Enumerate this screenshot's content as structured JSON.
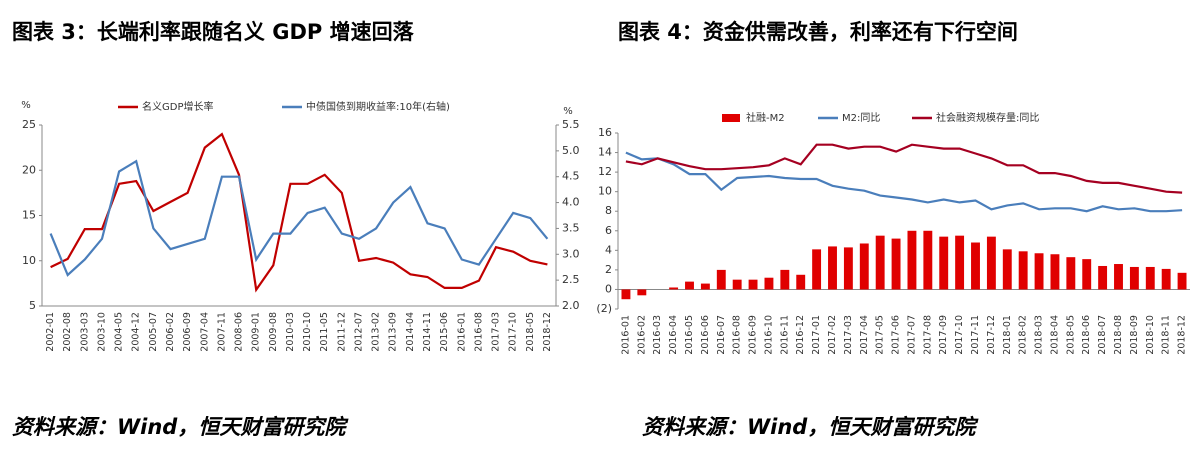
{
  "chart_data": [
    {
      "type": "line",
      "title": "图表 3：长端利率跟随名义 GDP 增速回落",
      "source": "资料来源：Wind，恒天财富研究院",
      "y_unit": "%",
      "y2_unit": "%",
      "categories": [
        "2002-01",
        "2002-08",
        "2003-03",
        "2003-10",
        "2004-05",
        "2004-12",
        "2005-07",
        "2006-02",
        "2006-09",
        "2007-04",
        "2007-11",
        "2008-06",
        "2009-01",
        "2009-08",
        "2010-03",
        "2010-10",
        "2011-05",
        "2011-12",
        "2012-07",
        "2013-02",
        "2013-09",
        "2014-04",
        "2014-11",
        "2015-06",
        "2016-01",
        "2016-08",
        "2017-03",
        "2017-10",
        "2018-05",
        "2018-12"
      ],
      "series": [
        {
          "name": "名义GDP增长率",
          "color": "#c00000",
          "values": [
            9.3,
            10.2,
            13.5,
            13.5,
            18.5,
            18.8,
            15.5,
            16.5,
            17.5,
            22.5,
            24,
            19.5,
            6.8,
            9.5,
            18.5,
            18.5,
            19.5,
            17.5,
            10,
            10.3,
            9.8,
            8.5,
            8.2,
            7,
            7,
            7.8,
            11.5,
            11,
            10,
            9.6
          ]
        },
        {
          "name": "中债国债到期收益率:10年(右轴)",
          "color": "#4a7ebb",
          "axis": "y2",
          "values": [
            3.4,
            2.6,
            2.9,
            3.3,
            4.6,
            4.8,
            3.5,
            3.1,
            3.2,
            3.3,
            4.5,
            4.5,
            2.9,
            3.4,
            3.4,
            3.8,
            3.9,
            3.4,
            3.3,
            3.5,
            4.0,
            4.3,
            3.6,
            3.5,
            2.9,
            2.8,
            3.3,
            3.8,
            3.7,
            3.3
          ]
        }
      ],
      "ylim": [
        5,
        25
      ],
      "yticks": [
        5,
        10,
        15,
        20,
        25
      ],
      "y2lim": [
        2,
        5.5
      ],
      "y2ticks": [
        {
          "value": 2,
          "label": "2.0"
        },
        {
          "value": 2.5,
          "label": "2.5"
        },
        {
          "value": 3,
          "label": "3.0"
        },
        {
          "value": 3.5,
          "label": "3.5"
        },
        {
          "value": 4,
          "label": "4.0"
        },
        {
          "value": 4.5,
          "label": "4.5"
        },
        {
          "value": 5,
          "label": "5.0"
        },
        {
          "value": 5.5,
          "label": "5.5"
        }
      ]
    },
    {
      "type": "bar",
      "title": "图表 4：资金供需改善，利率还有下行空间",
      "source": "资料来源：Wind，恒天财富研究院",
      "categories": [
        "2016-01",
        "2016-02",
        "2016-03",
        "2016-04",
        "2016-05",
        "2016-06",
        "2016-07",
        "2016-08",
        "2016-09",
        "2016-10",
        "2016-11",
        "2016-12",
        "2017-01",
        "2017-02",
        "2017-03",
        "2017-04",
        "2017-05",
        "2017-06",
        "2017-07",
        "2017-08",
        "2017-09",
        "2017-10",
        "2017-11",
        "2017-12",
        "2018-01",
        "2018-02",
        "2018-03",
        "2018-04",
        "2018-05",
        "2018-06",
        "2018-07",
        "2018-08",
        "2018-09",
        "2018-10",
        "2018-11",
        "2018-12"
      ],
      "series": [
        {
          "name": "社融-M2",
          "type": "bar",
          "color": "#e00000",
          "values": [
            -1.0,
            -0.6,
            0,
            0.2,
            0.8,
            0.6,
            2.0,
            1.0,
            1.0,
            1.2,
            2.0,
            1.5,
            4.1,
            4.4,
            4.3,
            4.7,
            5.5,
            5.2,
            6.0,
            6.0,
            5.4,
            5.5,
            4.8,
            5.4,
            4.1,
            3.9,
            3.7,
            3.6,
            3.3,
            3.1,
            2.4,
            2.6,
            2.3,
            2.3,
            2.1,
            1.7
          ]
        },
        {
          "name": "M2:同比",
          "type": "line",
          "color": "#4a7ebb",
          "values": [
            14.0,
            13.3,
            13.4,
            12.8,
            11.8,
            11.8,
            10.2,
            11.4,
            11.5,
            11.6,
            11.4,
            11.3,
            11.3,
            10.6,
            10.3,
            10.1,
            9.6,
            9.4,
            9.2,
            8.9,
            9.2,
            8.9,
            9.1,
            8.2,
            8.6,
            8.8,
            8.2,
            8.3,
            8.3,
            8.0,
            8.5,
            8.2,
            8.3,
            8.0,
            8.0,
            8.1
          ]
        },
        {
          "name": "社会融资规模存量:同比",
          "type": "line",
          "color": "#a50021",
          "values": [
            13.1,
            12.8,
            13.4,
            13.0,
            12.6,
            12.3,
            12.3,
            12.4,
            12.5,
            12.7,
            13.4,
            12.8,
            14.8,
            14.8,
            14.4,
            14.6,
            14.6,
            14.1,
            14.8,
            14.6,
            14.4,
            14.4,
            13.9,
            13.4,
            12.7,
            12.7,
            11.9,
            11.9,
            11.6,
            11.1,
            10.9,
            10.9,
            10.6,
            10.3,
            10.0,
            9.9
          ]
        }
      ],
      "ylim": [
        -2,
        16
      ],
      "yticks": [
        {
          "value": -2,
          "label": "(2)"
        },
        0,
        2,
        4,
        6,
        8,
        10,
        12,
        14,
        16
      ]
    }
  ]
}
